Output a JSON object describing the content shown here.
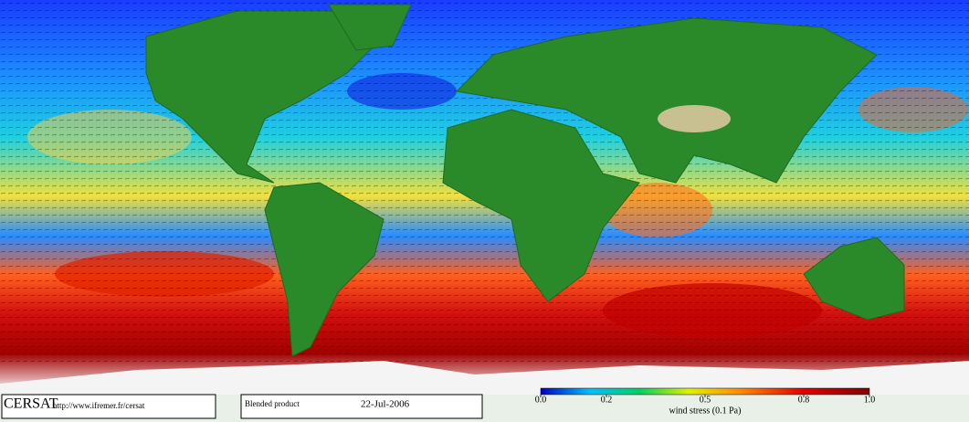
{
  "credit": {
    "name": "CERSAT",
    "url": "http://www.ifremer.fr/cersat"
  },
  "product": {
    "name": "Blended product",
    "date": "22-Jul-2006"
  },
  "colorbar": {
    "label": "wind stress (0.1 Pa)",
    "range": [
      0,
      1
    ],
    "ticks": [
      {
        "value": 0,
        "label": "0.0"
      },
      {
        "value": 0.2,
        "label": "0.2"
      },
      {
        "value": 0.5,
        "label": "0.5"
      },
      {
        "value": 0.8,
        "label": "0.8"
      },
      {
        "value": 1,
        "label": "1.0"
      }
    ]
  }
}
